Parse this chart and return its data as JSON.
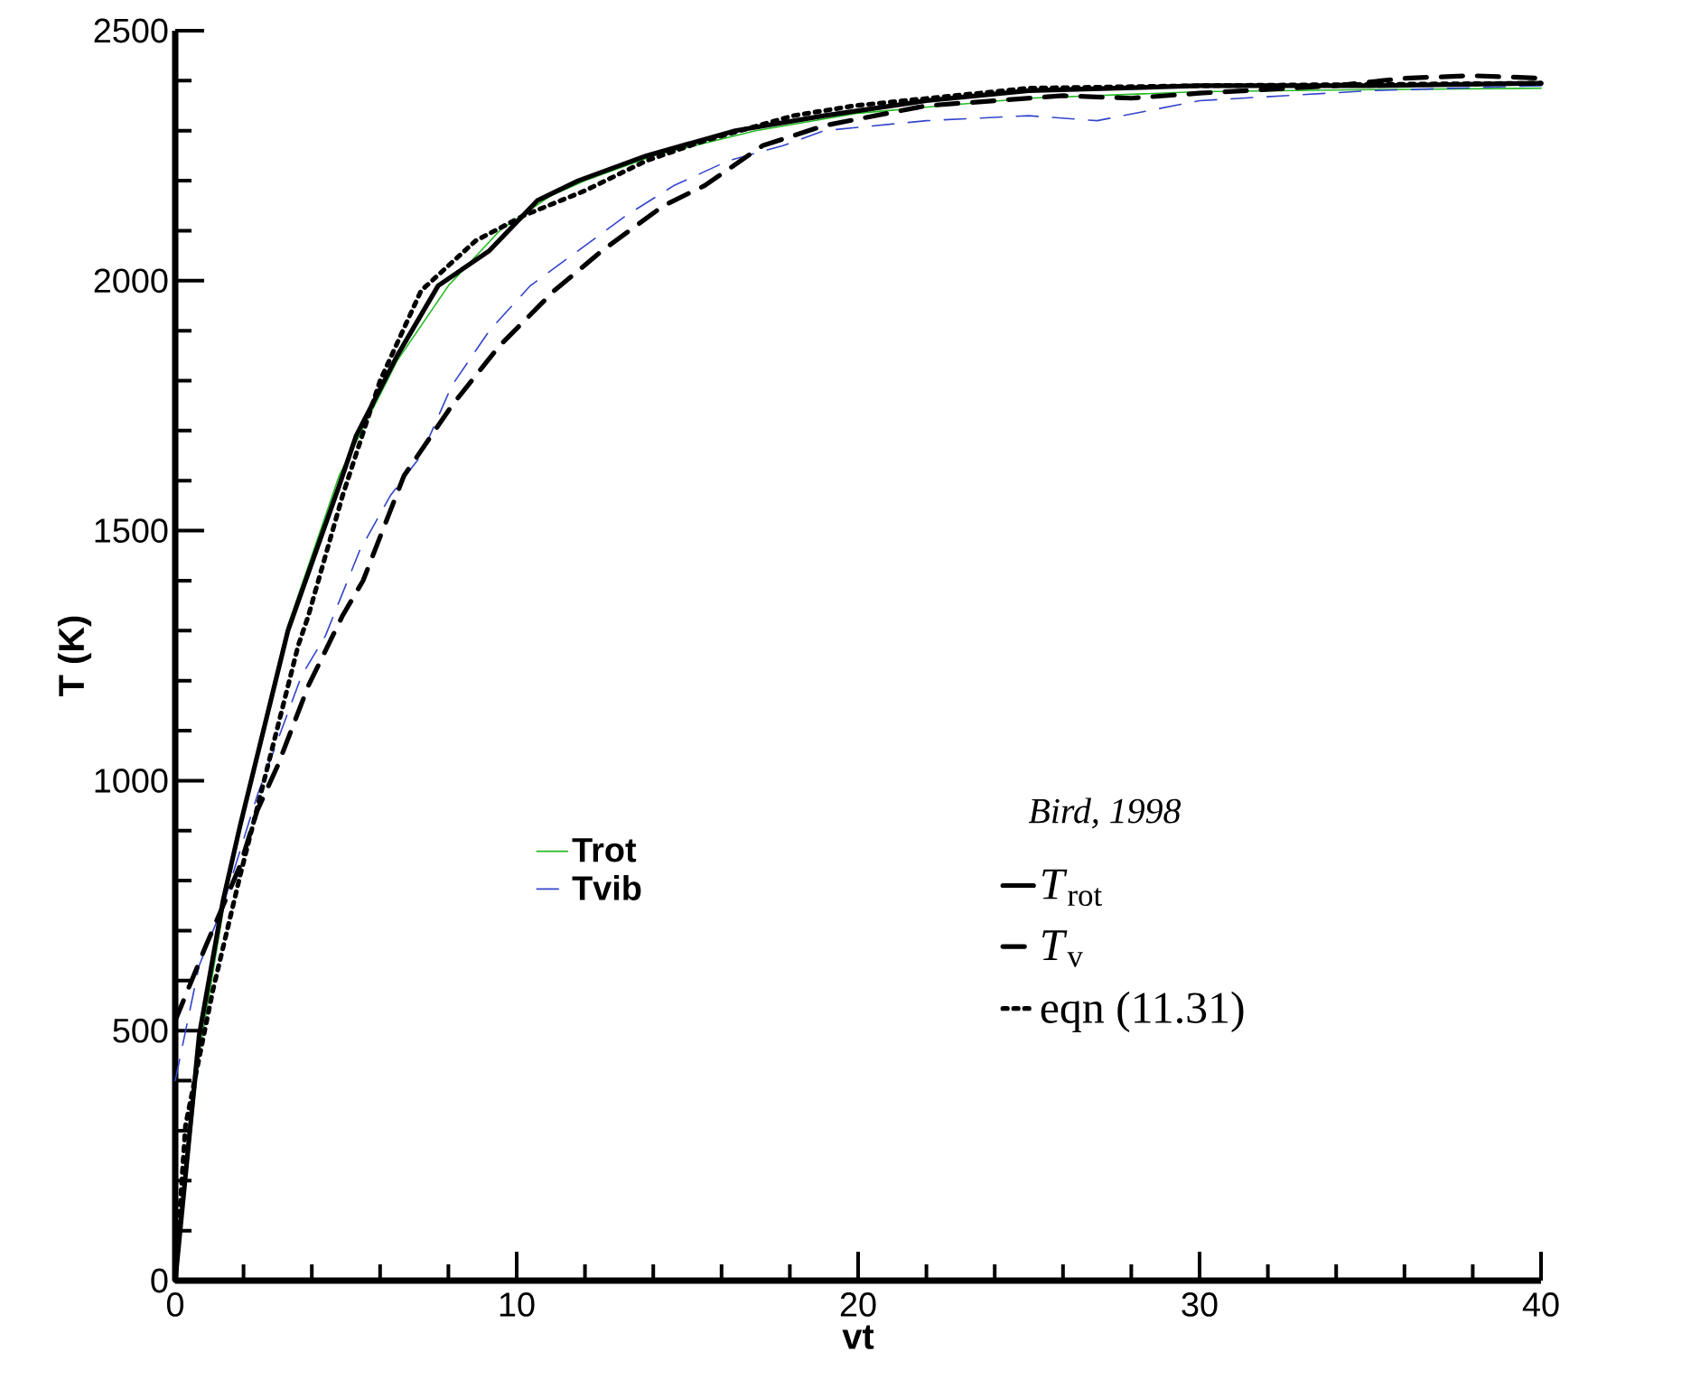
{
  "chart_data": {
    "type": "line",
    "xlabel": "vt",
    "ylabel": "T (K)",
    "xlim": [
      0,
      40
    ],
    "ylim": [
      0,
      2500
    ],
    "xticks": [
      0,
      10,
      20,
      30,
      40
    ],
    "yticks": [
      0,
      500,
      1000,
      1500,
      2000,
      2500
    ],
    "grid": false,
    "legend": "bottom",
    "marker": "none",
    "annotations": [
      "*Bird, 1998*"
    ],
    "series": [
      {
        "name": "Trot",
        "color": "#22bb22",
        "line_style": "solid",
        "x": [
          0,
          0.7,
          1.5,
          2.2,
          3.3,
          4.8,
          6.5,
          8,
          9.5,
          11,
          12,
          14,
          17,
          20,
          25,
          30,
          35,
          40
        ],
        "values": [
          0,
          450,
          780,
          1000,
          1310,
          1610,
          1840,
          1990,
          2100,
          2170,
          2200,
          2250,
          2300,
          2335,
          2365,
          2378,
          2382,
          2385
        ]
      },
      {
        "name": "Tvib",
        "color": "#3344cc",
        "line_style": "dashed",
        "x": [
          0,
          0.7,
          1.4,
          2.4,
          3.7,
          4.4,
          5.4,
          6.3,
          7.2,
          8.1,
          9.2,
          10.4,
          11.8,
          13.2,
          14.6,
          16.2,
          17.8,
          19,
          22,
          25,
          27,
          30,
          35,
          40
        ],
        "values": [
          400,
          630,
          750,
          970,
          1210,
          1290,
          1460,
          1570,
          1650,
          1790,
          1900,
          1990,
          2060,
          2130,
          2190,
          2240,
          2270,
          2300,
          2320,
          2330,
          2320,
          2360,
          2380,
          2390
        ]
      },
      {
        "name": "*T*$_{rot}$",
        "color": "#000000",
        "line_style": "solid",
        "x": [
          0,
          0.7,
          1.4,
          1.9,
          3.3,
          4.8,
          5.3,
          6.5,
          7.7,
          9.2,
          10.6,
          11.8,
          13.8,
          16.4,
          19,
          22,
          25,
          30,
          35,
          40
        ],
        "values": [
          0,
          490,
          760,
          910,
          1300,
          1590,
          1690,
          1850,
          1990,
          2060,
          2160,
          2200,
          2250,
          2300,
          2330,
          2360,
          2380,
          2390,
          2390,
          2395
        ]
      },
      {
        "name": "*T*$_{v}$",
        "color": "#000000",
        "line_style": "dashed",
        "x": [
          0,
          0.9,
          1.4,
          1.9,
          2.4,
          3,
          3.9,
          4.9,
          5.5,
          6.7,
          8.1,
          9.5,
          11.1,
          12.5,
          14.3,
          15.5,
          17.2,
          19,
          22,
          26,
          28,
          30,
          34,
          36,
          38,
          40
        ],
        "values": [
          520,
          670,
          750,
          830,
          940,
          1030,
          1190,
          1330,
          1400,
          1610,
          1750,
          1870,
          1980,
          2060,
          2150,
          2190,
          2270,
          2310,
          2350,
          2370,
          2365,
          2375,
          2390,
          2405,
          2410,
          2405
        ]
      },
      {
        "name": "eqn (11.31)",
        "color": "#000000",
        "line_style": "dotted",
        "x": [
          0,
          0.3,
          1.1,
          1.9,
          3.6,
          3.9,
          4.9,
          6,
          7.2,
          8.8,
          10.2,
          12,
          13.8,
          15.5,
          18.1,
          19.9,
          25,
          30,
          40
        ],
        "values": [
          0,
          310,
          580,
          810,
          1270,
          1330,
          1570,
          1800,
          1980,
          2080,
          2130,
          2180,
          2240,
          2280,
          2330,
          2350,
          2385,
          2390,
          2395
        ]
      }
    ]
  }
}
